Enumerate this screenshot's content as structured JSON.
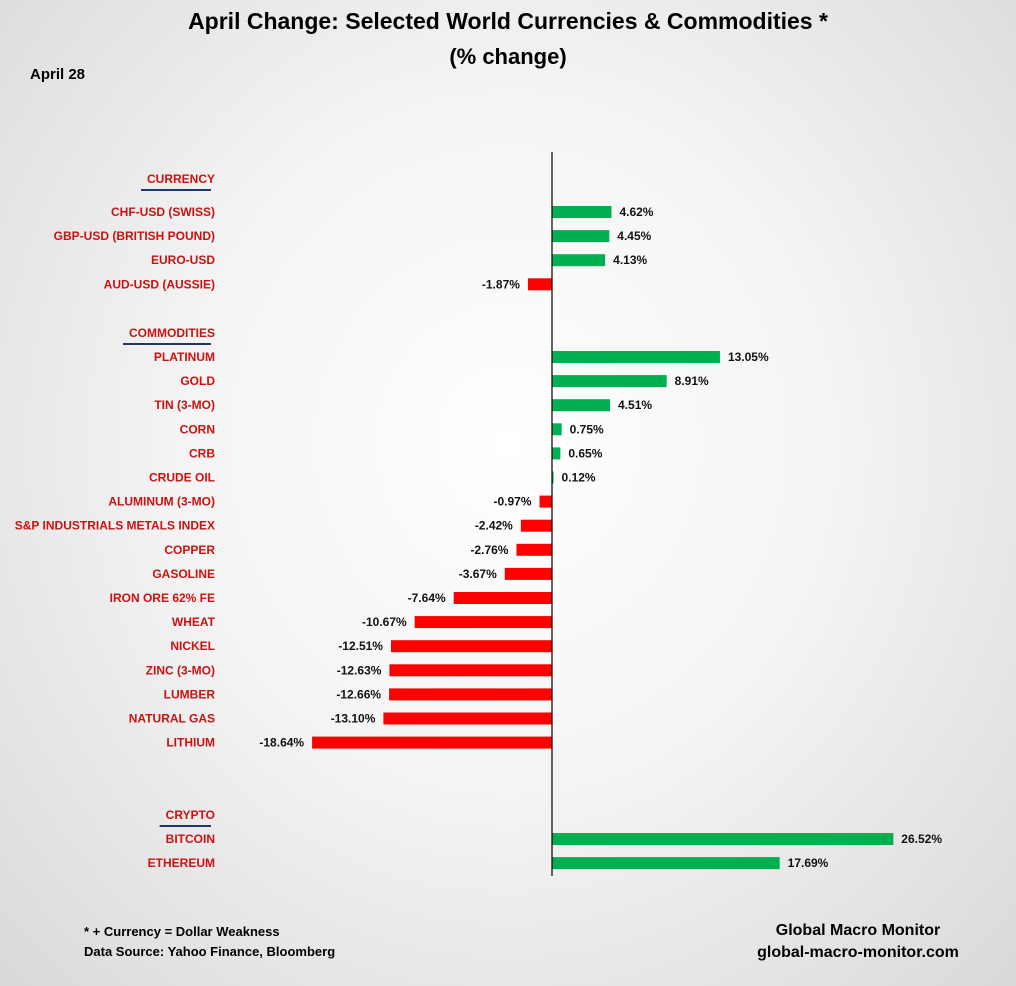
{
  "title": "April Change: Selected World Currencies & Commodities *",
  "subtitle": "(% change)",
  "date_label": "April 28",
  "footnotes": [
    "* + Currency = Dollar Weakness",
    "Data Source:  Yahoo Finance, Bloomberg"
  ],
  "credit": [
    "Global Macro Monitor",
    "global-macro-monitor.com"
  ],
  "colors": {
    "positive": "#00b050",
    "negative": "#ff0000",
    "label": "#cc1111",
    "underline": "#1f3864"
  },
  "chart_data": {
    "type": "bar",
    "orientation": "horizontal",
    "unit": "%",
    "groups": [
      {
        "name": "CURRENCY",
        "categories": [
          "CHF-USD (SWISS)",
          "GBP-USD (BRITISH POUND)",
          "EURO-USD",
          "AUD-USD (AUSSIE)"
        ],
        "values": [
          4.62,
          4.45,
          4.13,
          -1.87
        ],
        "value_labels": [
          "4.62%",
          "4.45%",
          "4.13%",
          "-1.87%"
        ]
      },
      {
        "name": "COMMODITIES",
        "categories": [
          "PLATINUM",
          "GOLD",
          "TIN (3-MO)",
          "CORN",
          "CRB",
          "CRUDE OIL",
          "ALUMINUM (3-MO)",
          "S&P INDUSTRIALS METALS INDEX",
          "COPPER",
          "GASOLINE",
          "IRON ORE 62% FE",
          "WHEAT",
          "NICKEL",
          "ZINC (3-MO)",
          "LUMBER",
          "NATURAL GAS",
          "LITHIUM"
        ],
        "values": [
          13.05,
          8.91,
          4.51,
          0.75,
          0.65,
          0.12,
          -0.97,
          -2.42,
          -2.76,
          -3.67,
          -7.64,
          -10.67,
          -12.51,
          -12.63,
          -12.66,
          -13.1,
          -18.64
        ],
        "value_labels": [
          "13.05%",
          "8.91%",
          "4.51%",
          "0.75%",
          "0.65%",
          "0.12%",
          "-0.97%",
          "-2.42%",
          "-2.76%",
          "-3.67%",
          "-7.64%",
          "-10.67%",
          "-12.51%",
          "-12.63%",
          "-12.66%",
          "-13.10%",
          "-18.64%"
        ]
      },
      {
        "name": "CRYPTO",
        "categories": [
          "BITCOIN",
          "ETHEREUM"
        ],
        "values": [
          26.52,
          17.69
        ],
        "value_labels": [
          "26.52%",
          "17.69%"
        ]
      }
    ],
    "grid": false,
    "legend": "none"
  }
}
